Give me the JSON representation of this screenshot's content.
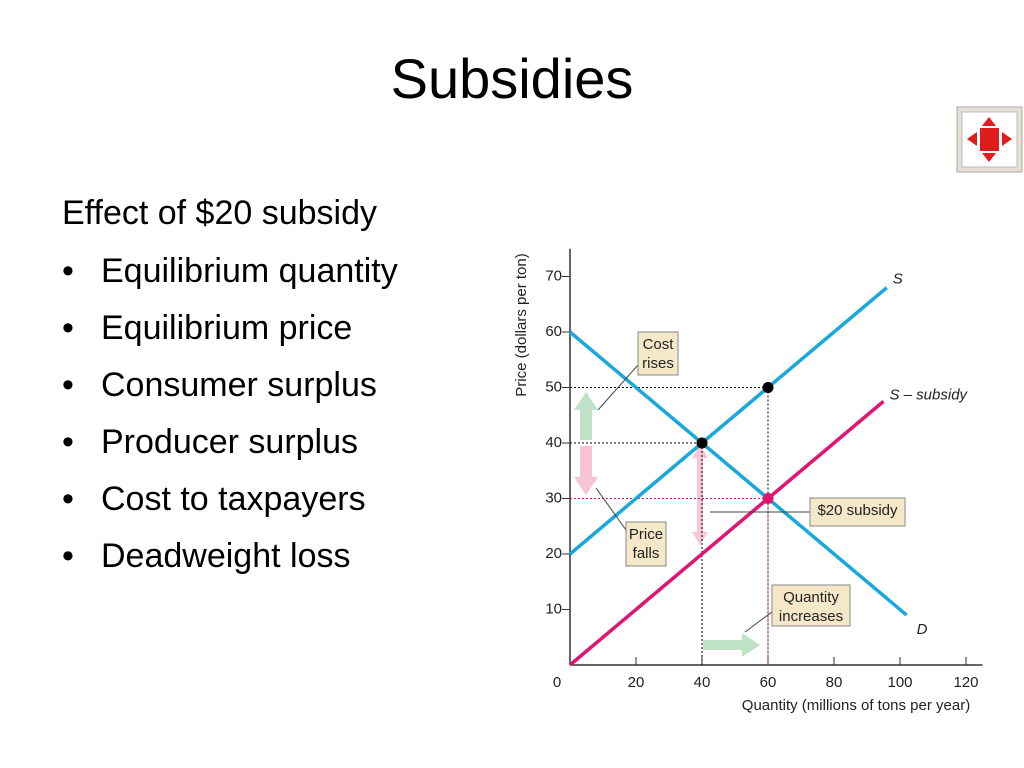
{
  "title": "Subsidies",
  "heading": "Effect of $20 subsidy",
  "bullets": [
    "Equilibrium quantity",
    "Equilibrium price",
    "Consumer surplus",
    "Producer surplus",
    "Cost to taxpayers",
    "Deadweight loss"
  ],
  "chart_data": {
    "type": "line",
    "x_label": "Quantity (millions of tons per year)",
    "y_label": "Price (dollars per ton)",
    "xlim": [
      0,
      125
    ],
    "ylim": [
      0,
      75
    ],
    "xticks": [
      0,
      20,
      40,
      60,
      80,
      100,
      120
    ],
    "yticks": [
      10,
      20,
      30,
      40,
      50,
      60,
      70
    ],
    "series": [
      {
        "name": "S",
        "color": "#1aa7d9",
        "x": [
          0,
          96
        ],
        "values": [
          20,
          68
        ]
      },
      {
        "name": "S – subsidy",
        "color": "#e0156f",
        "x": [
          0,
          95
        ],
        "values": [
          0,
          47.5
        ]
      },
      {
        "name": "D",
        "color": "#1aa7d9",
        "x": [
          0,
          102
        ],
        "values": [
          60,
          9
        ]
      }
    ],
    "points": [
      {
        "x": 40,
        "y": 40,
        "color": "#000000"
      },
      {
        "x": 60,
        "y": 50,
        "color": "#000000"
      },
      {
        "x": 60,
        "y": 30,
        "color": "#e0156f"
      }
    ],
    "annotations": [
      {
        "lines": [
          "Cost",
          "rises"
        ]
      },
      {
        "lines": [
          "Price",
          "falls"
        ]
      },
      {
        "lines": [
          "$20 subsidy"
        ]
      },
      {
        "lines": [
          "Quantity",
          "increases"
        ]
      }
    ]
  }
}
